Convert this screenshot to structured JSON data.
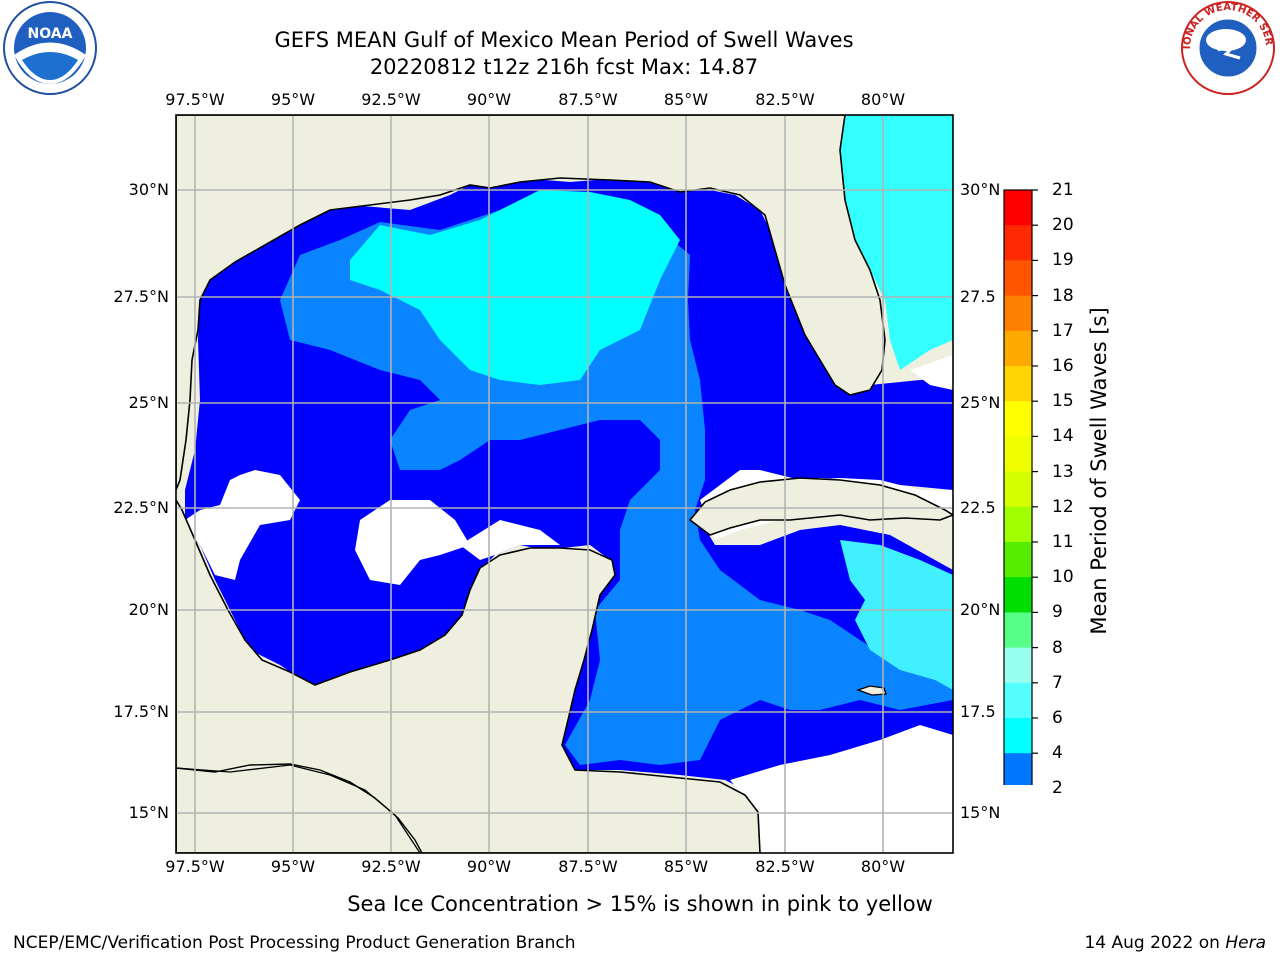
{
  "title": {
    "line1": "GEFS MEAN Gulf of Mexico Mean Period of Swell Waves",
    "line2": "20220812 t12z 216h fcst   Max: 14.87"
  },
  "map": {
    "lon_labels": [
      "97.5°W",
      "95°W",
      "92.5°W",
      "90°W",
      "87.5°W",
      "85°W",
      "82.5°W",
      "80°W"
    ],
    "lat_labels_left": [
      "30°N",
      "27.5°N",
      "25°N",
      "22.5°N",
      "20°N",
      "17.5°N",
      "15°N"
    ],
    "lat_labels_right": [
      "30°N",
      "27.5",
      "25°N",
      "22.5",
      "20°N",
      "17.5",
      "15°N"
    ],
    "land_color": "#efefdf",
    "no_data_color": "#ffffff",
    "grid": true
  },
  "colorbar": {
    "label": "Mean Period of Swell Waves [s]",
    "ticks": [
      "21",
      "20",
      "19",
      "18",
      "17",
      "16",
      "15",
      "14",
      "13",
      "12",
      "11",
      "10",
      "9",
      "8",
      "7",
      "6",
      "4",
      "2"
    ],
    "colors": [
      "#ff0000",
      "#ff2a00",
      "#ff5500",
      "#ff7f00",
      "#ffaa00",
      "#ffd400",
      "#ffff00",
      "#f0ff00",
      "#d4ff00",
      "#a0ff00",
      "#55ee00",
      "#00dd00",
      "#55ff88",
      "#99ffee",
      "#55ffff",
      "#00ffff",
      "#0077ff",
      "#0000ff"
    ],
    "extend": "min"
  },
  "logos": {
    "left": {
      "name": "NOAA"
    },
    "right": {
      "name": "NATIONAL WEATHER SERVICE"
    }
  },
  "footnote": "Sea Ice Concentration > 15% is shown in pink to yellow",
  "credit": "NCEP/EMC/Verification Post Processing Product Generation Branch",
  "date": {
    "text": "14 Aug 2022 on ",
    "machine": "Hera"
  }
}
